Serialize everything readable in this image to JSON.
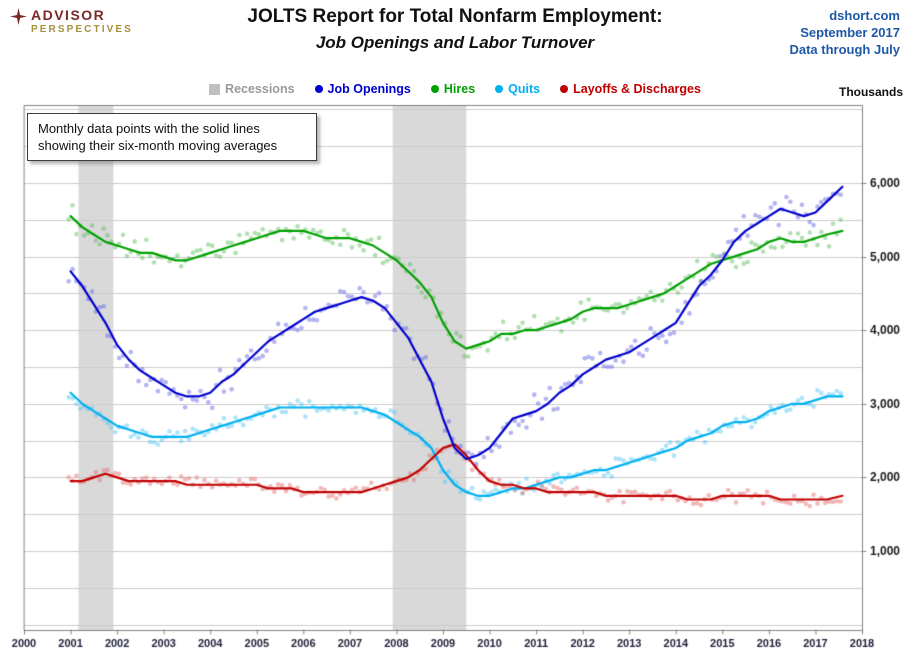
{
  "header": {
    "logo_line1": "ADVISOR",
    "logo_line2": "PERSPECTIVES",
    "title": "JOLTS Report for Total Nonfarm Employment:",
    "subtitle": "Job Openings and Labor Turnover",
    "source": "dshort.com",
    "source_date": "September 2017",
    "data_through": "Data through July"
  },
  "annotation": "Monthly data points with the solid lines showing their six-month moving averages",
  "legend": [
    {
      "label": "Recessions",
      "color": "#bfbfbf",
      "text_color": "#9a9a9a",
      "marker": "square"
    },
    {
      "label": "Job Openings",
      "color": "#0000cd",
      "text_color": "#0000cd",
      "marker": "dot"
    },
    {
      "label": "Hires",
      "color": "#00a000",
      "text_color": "#00a000",
      "marker": "dot"
    },
    {
      "label": "Quits",
      "color": "#00b0f0",
      "text_color": "#00b0f0",
      "marker": "dot"
    },
    {
      "label": "Layoffs & Discharges",
      "color": "#c00000",
      "text_color": "#c00000",
      "marker": "dot"
    }
  ],
  "chart_data": {
    "type": "line",
    "title": "JOLTS Report for Total Nonfarm Employment: Job Openings and Labor Turnover",
    "units_label": "Thousands",
    "xlim": [
      2000,
      2018
    ],
    "ylim": [
      0,
      7000
    ],
    "grid_step": 500,
    "grid_color": "#cccccc",
    "border_color": "#808080",
    "recession_color": "#d9d9d9",
    "x_ticks": [
      2000,
      2001,
      2002,
      2003,
      2004,
      2005,
      2006,
      2007,
      2008,
      2009,
      2010,
      2011,
      2012,
      2013,
      2014,
      2015,
      2016,
      2017,
      2018
    ],
    "y_ticks": [
      1000,
      2000,
      3000,
      4000,
      5000,
      6000
    ],
    "y_tick_labels": [
      "1,000",
      "2,000",
      "3,000",
      "4,000",
      "5,000",
      "6,000"
    ],
    "recessions": [
      [
        2001.17,
        2001.92
      ],
      [
        2007.92,
        2009.5
      ]
    ],
    "x": [
      2001,
      2001.25,
      2001.5,
      2001.75,
      2002,
      2002.25,
      2002.5,
      2002.75,
      2003,
      2003.25,
      2003.5,
      2003.75,
      2004,
      2004.25,
      2004.5,
      2004.75,
      2005,
      2005.25,
      2005.5,
      2005.75,
      2006,
      2006.25,
      2006.5,
      2006.75,
      2007,
      2007.25,
      2007.5,
      2007.75,
      2008,
      2008.25,
      2008.5,
      2008.75,
      2009,
      2009.25,
      2009.5,
      2009.75,
      2010,
      2010.25,
      2010.5,
      2010.75,
      2011,
      2011.25,
      2011.5,
      2011.75,
      2012,
      2012.25,
      2012.5,
      2012.75,
      2013,
      2013.25,
      2013.5,
      2013.75,
      2014,
      2014.25,
      2014.5,
      2014.75,
      2015,
      2015.25,
      2015.5,
      2015.75,
      2016,
      2016.25,
      2016.5,
      2016.75,
      2017,
      2017.25,
      2017.58
    ],
    "series": [
      {
        "name": "Hires",
        "color": "#00a000",
        "scatter_color": "rgba(85,185,85,0.45)",
        "jitter": 200,
        "values": [
          5550,
          5400,
          5300,
          5200,
          5150,
          5100,
          5050,
          5050,
          5000,
          4950,
          4950,
          5000,
          5050,
          5100,
          5150,
          5200,
          5250,
          5300,
          5350,
          5350,
          5350,
          5300,
          5250,
          5250,
          5250,
          5200,
          5150,
          5050,
          4950,
          4800,
          4650,
          4450,
          4100,
          3850,
          3750,
          3800,
          3850,
          3950,
          3950,
          4000,
          4000,
          4050,
          4100,
          4150,
          4250,
          4300,
          4300,
          4300,
          4350,
          4400,
          4450,
          4500,
          4600,
          4700,
          4800,
          4900,
          4950,
          5000,
          5050,
          5100,
          5200,
          5250,
          5200,
          5200,
          5250,
          5300,
          5350
        ]
      },
      {
        "name": "Quits",
        "color": "#00b0f0",
        "scatter_color": "rgba(90,200,245,0.5)",
        "jitter": 130,
        "values": [
          3150,
          3000,
          2900,
          2800,
          2700,
          2650,
          2600,
          2550,
          2550,
          2550,
          2550,
          2600,
          2650,
          2700,
          2750,
          2800,
          2850,
          2900,
          2950,
          2950,
          2950,
          2950,
          2950,
          2950,
          2950,
          2950,
          2900,
          2850,
          2750,
          2650,
          2550,
          2400,
          2100,
          1900,
          1800,
          1750,
          1750,
          1800,
          1850,
          1850,
          1900,
          1950,
          2000,
          2000,
          2050,
          2100,
          2100,
          2150,
          2200,
          2250,
          2300,
          2350,
          2400,
          2500,
          2550,
          2600,
          2700,
          2750,
          2750,
          2800,
          2900,
          2950,
          3000,
          3000,
          3050,
          3100,
          3100
        ]
      },
      {
        "name": "Layoffs & Discharges",
        "color": "#c00000",
        "scatter_color": "rgba(230,115,115,0.5)",
        "jitter": 115,
        "values": [
          1950,
          1950,
          2000,
          2050,
          2000,
          1950,
          1950,
          1950,
          1950,
          1950,
          1900,
          1900,
          1900,
          1900,
          1900,
          1900,
          1900,
          1850,
          1850,
          1850,
          1800,
          1800,
          1800,
          1800,
          1800,
          1800,
          1850,
          1900,
          1950,
          2000,
          2100,
          2250,
          2400,
          2450,
          2300,
          2100,
          1950,
          1900,
          1900,
          1850,
          1850,
          1800,
          1800,
          1800,
          1800,
          1800,
          1750,
          1750,
          1750,
          1750,
          1750,
          1750,
          1750,
          1700,
          1700,
          1700,
          1750,
          1750,
          1750,
          1750,
          1750,
          1700,
          1700,
          1700,
          1700,
          1700,
          1750
        ]
      },
      {
        "name": "Job Openings",
        "color": "#0000cd",
        "scatter_color": "rgba(105,105,230,0.5)",
        "jitter": 240,
        "values": [
          4800,
          4600,
          4350,
          4100,
          3800,
          3600,
          3450,
          3350,
          3250,
          3150,
          3100,
          3100,
          3150,
          3300,
          3400,
          3550,
          3700,
          3850,
          3950,
          4050,
          4150,
          4250,
          4300,
          4350,
          4400,
          4450,
          4400,
          4300,
          4100,
          3900,
          3600,
          3300,
          2800,
          2400,
          2250,
          2300,
          2400,
          2600,
          2800,
          2850,
          2900,
          3000,
          3150,
          3250,
          3400,
          3500,
          3600,
          3650,
          3700,
          3800,
          3900,
          4000,
          4100,
          4350,
          4600,
          4750,
          4950,
          5200,
          5350,
          5450,
          5550,
          5650,
          5600,
          5550,
          5600,
          5750,
          5950
        ]
      }
    ],
    "scatter": {
      "start": 2000.96,
      "end": 2017.58,
      "point_radius": 2.3
    }
  }
}
